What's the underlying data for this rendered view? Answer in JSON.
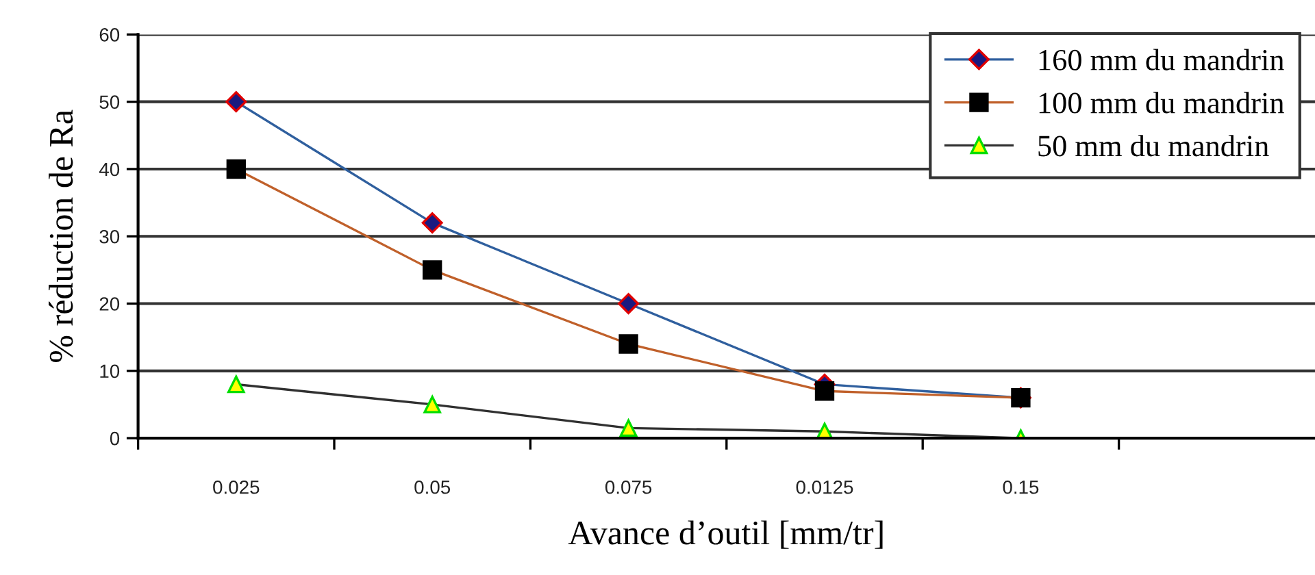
{
  "chart_data": {
    "type": "line",
    "xlabel": "Avance d’outil [mm/tr]",
    "ylabel": "% réduction de Ra",
    "categories": [
      "0.025",
      "0.05",
      "0.075",
      "0.0125",
      "0.15",
      null
    ],
    "series": [
      {
        "name": "160 mm du mandrin",
        "color": "#2f5f9e",
        "marker": "diamond",
        "values": [
          50,
          32,
          20,
          8,
          6,
          null
        ]
      },
      {
        "name": "100 mm du mandrin",
        "color": "#c0602a",
        "marker": "square",
        "values": [
          40,
          25,
          14,
          7,
          6,
          null
        ]
      },
      {
        "name": "50 mm du mandrin",
        "color": "#303030",
        "marker": "triangle",
        "values": [
          8,
          5,
          1.5,
          1,
          0,
          null
        ]
      }
    ],
    "ylim": [
      0,
      60
    ],
    "yticks": [
      0,
      10,
      20,
      30,
      40,
      50,
      60
    ],
    "grid": "y",
    "legend": "top right"
  }
}
